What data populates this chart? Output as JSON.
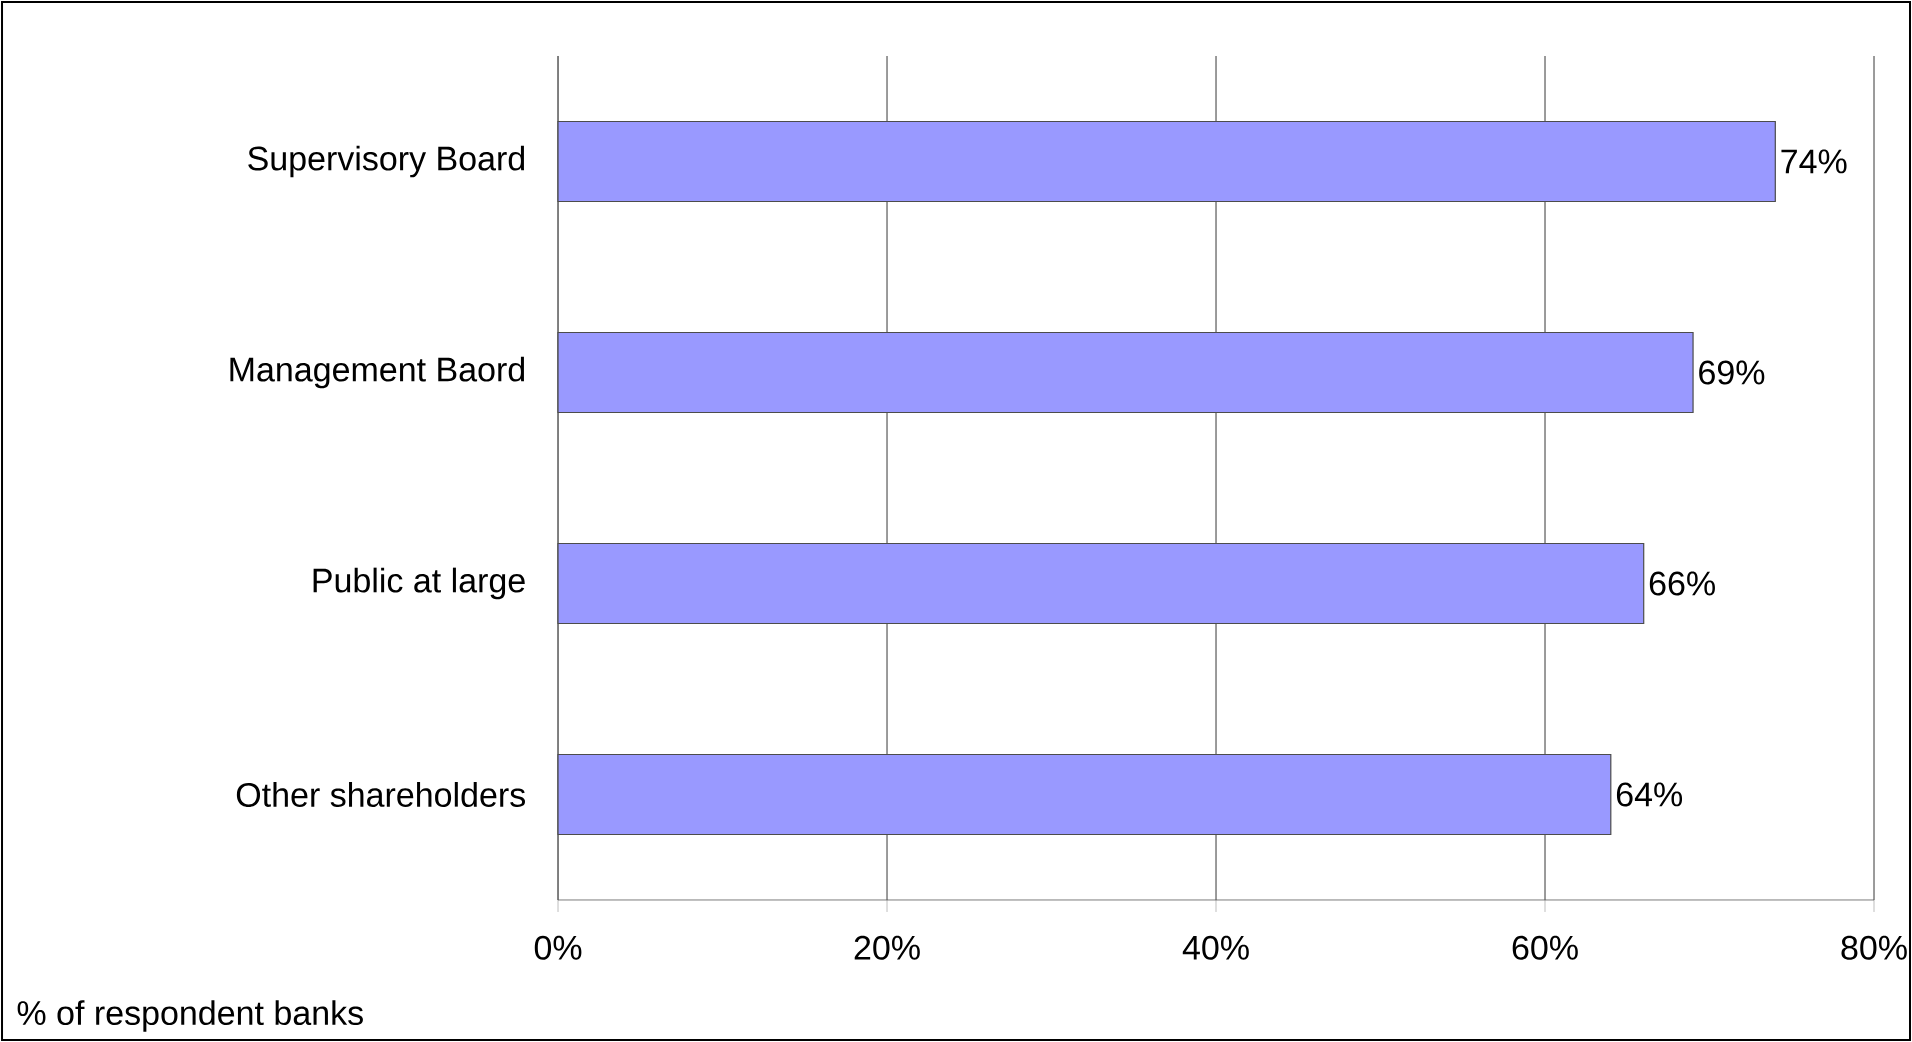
{
  "chart_data": {
    "type": "bar",
    "orientation": "horizontal",
    "categories": [
      "Supervisory Board",
      "Management Baord",
      "Public at large",
      "Other shareholders"
    ],
    "values": [
      74,
      69,
      66,
      64
    ],
    "value_labels": [
      "74%",
      "69%",
      "66%",
      "64%"
    ],
    "color": "#9999ff",
    "xlim": [
      0,
      80
    ],
    "xticks": [
      {
        "value": 0,
        "label": "0%"
      },
      {
        "value": 20,
        "label": "20%"
      },
      {
        "value": 40,
        "label": "40%"
      },
      {
        "value": 60,
        "label": "60%"
      },
      {
        "value": 80,
        "label": "80%"
      }
    ],
    "grid": "x",
    "annotations": [
      "% of respondent banks"
    ]
  }
}
